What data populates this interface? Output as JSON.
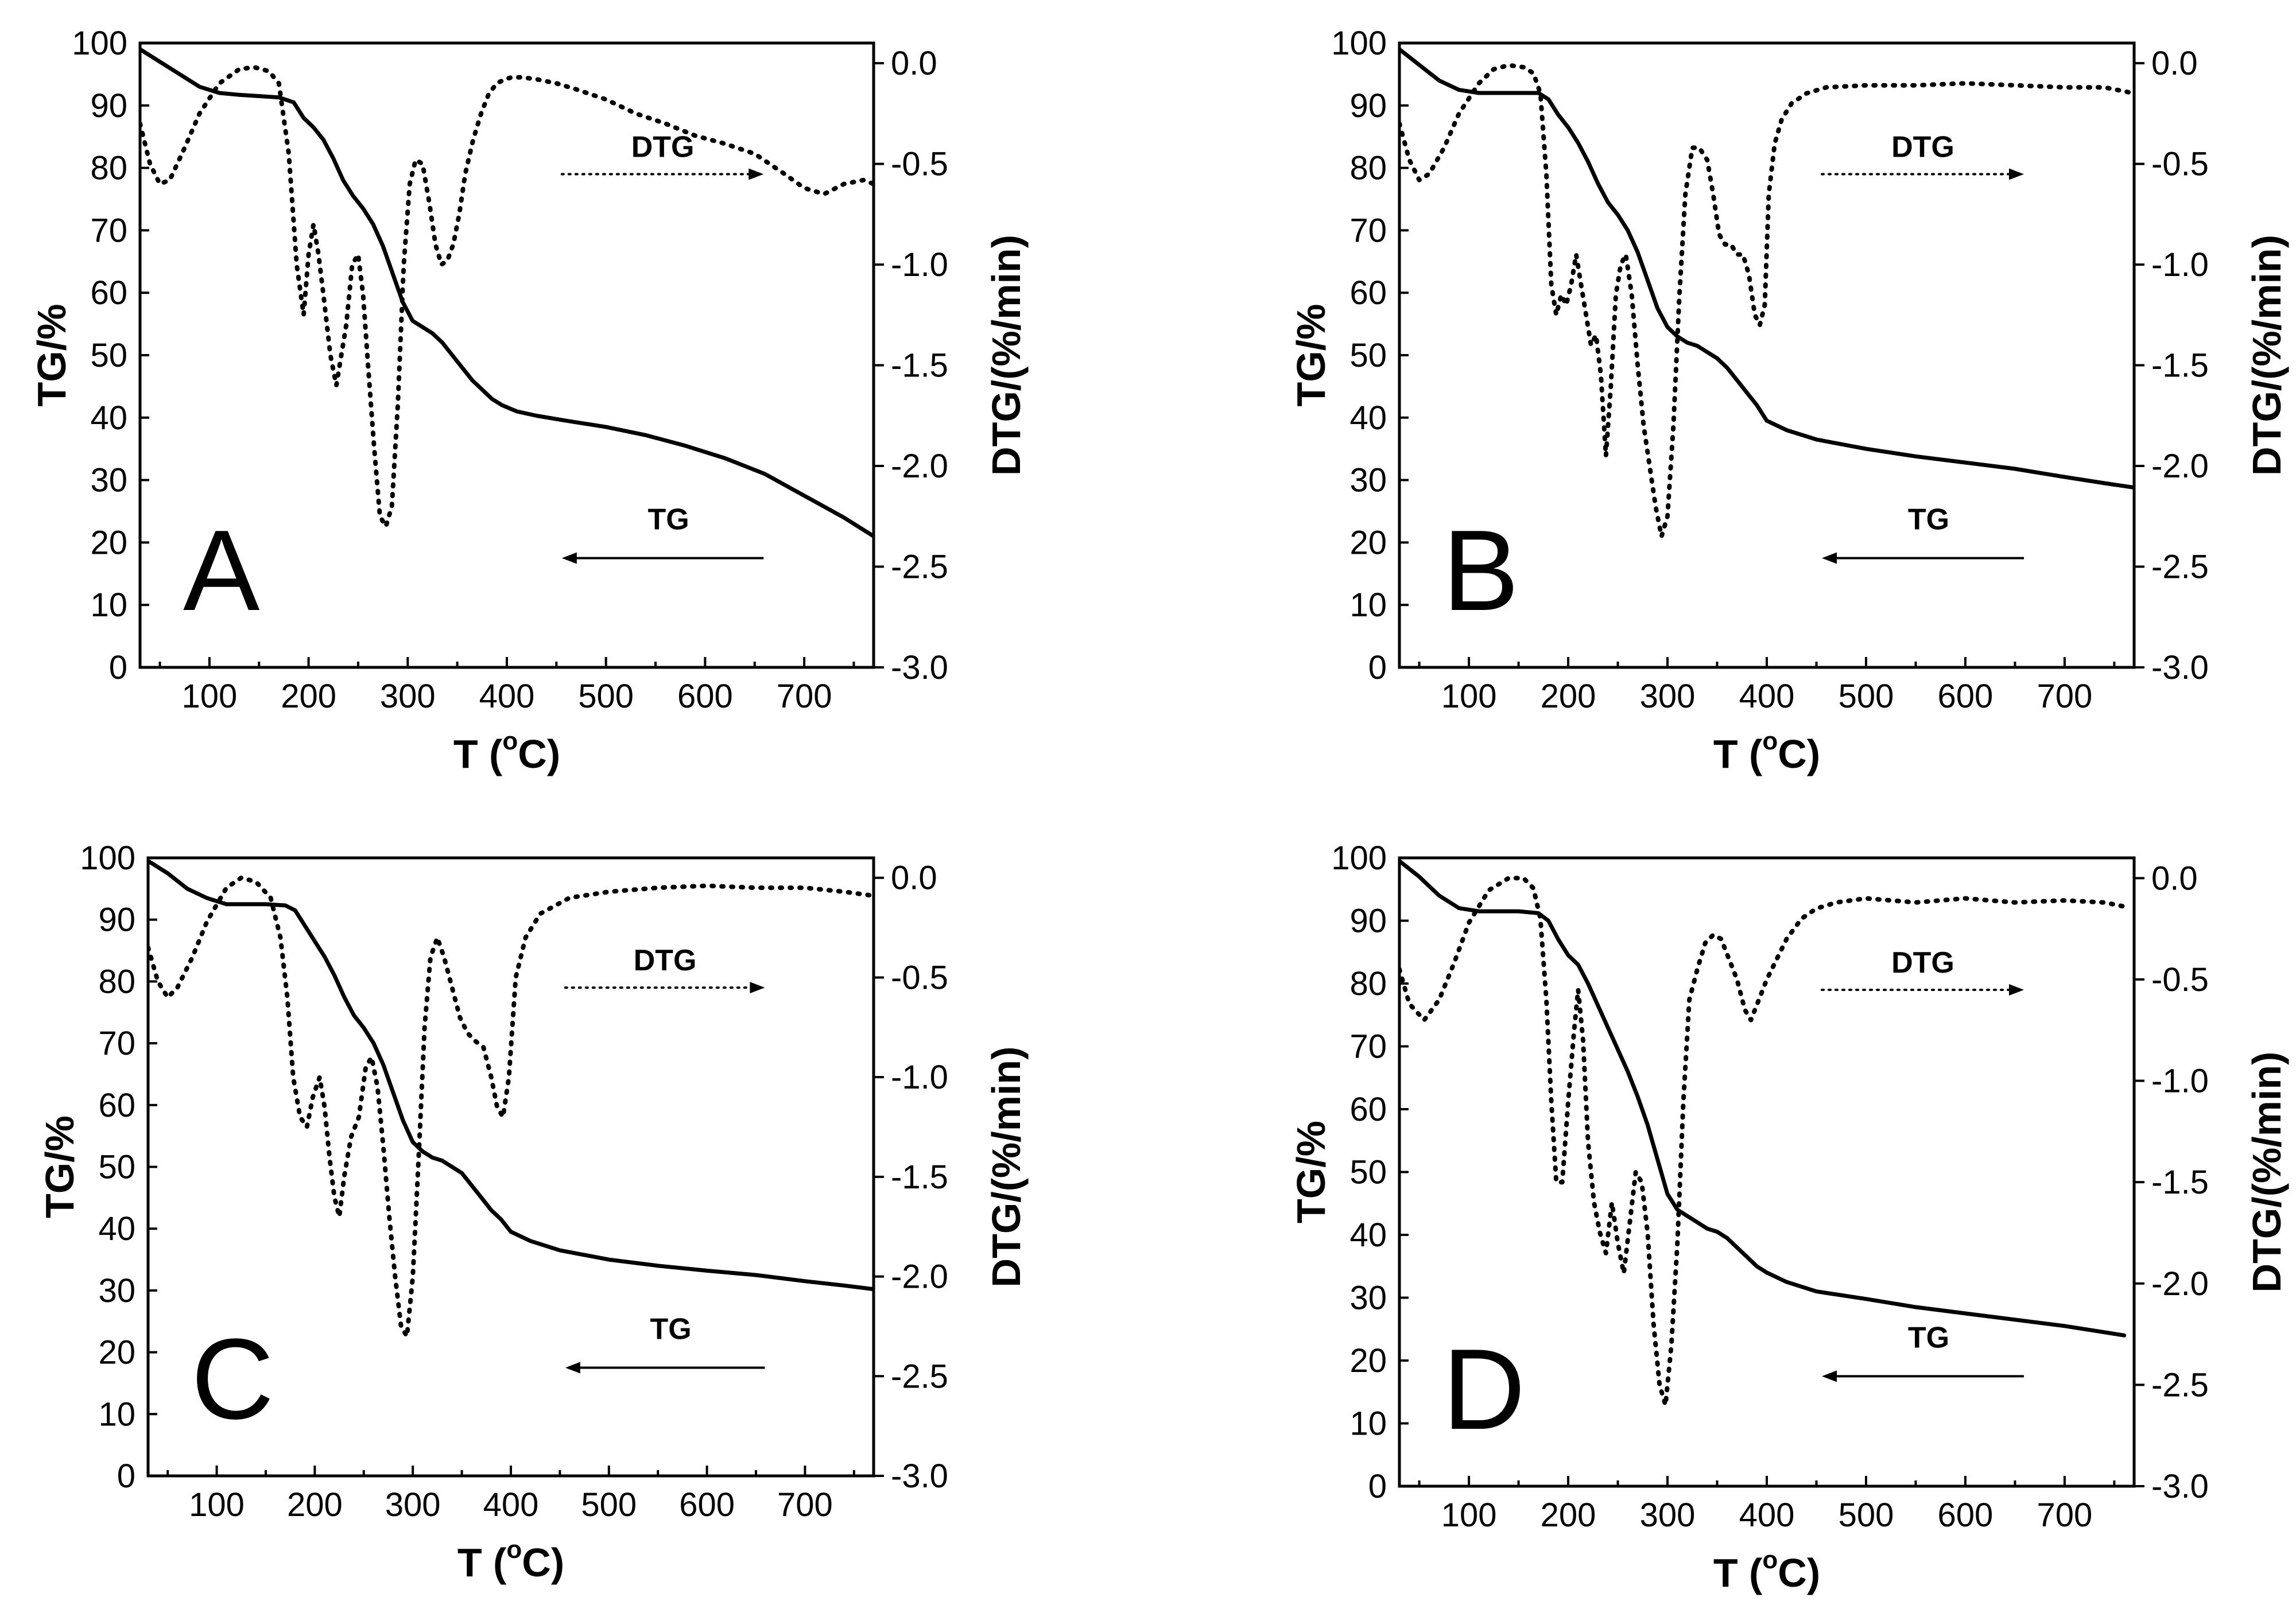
{
  "figure": {
    "xlabel_prefix": "T (",
    "xlabel_sup": "o",
    "xlabel_suffix": "C)",
    "ylabel_left": "TG/%",
    "ylabel_right": "DTG/(%/min)"
  },
  "chart_data": [
    {
      "type": "line",
      "panel": "A",
      "xlim": [
        30,
        770
      ],
      "ylim": [
        0,
        100
      ],
      "y2lim": [
        -3.0,
        0.1
      ],
      "xticks": [
        100,
        200,
        300,
        400,
        500,
        600,
        700
      ],
      "yticks": [
        0,
        10,
        20,
        30,
        40,
        50,
        60,
        70,
        80,
        90,
        100
      ],
      "y2ticks": [
        0.0,
        -0.5,
        -1.0,
        -1.5,
        -2.0,
        -2.5,
        -3.0
      ],
      "xlabel": "T (oC)",
      "ylabel": "TG/%",
      "y2label": "DTG/(%/min)",
      "annotations": {
        "dtg": "DTG",
        "tg": "TG"
      },
      "series": [
        {
          "name": "TG",
          "axis": "left",
          "style": "solid",
          "x": [
            30,
            50,
            70,
            90,
            110,
            130,
            150,
            170,
            185,
            195,
            205,
            215,
            225,
            235,
            245,
            255,
            265,
            275,
            285,
            295,
            305,
            315,
            325,
            335,
            345,
            355,
            365,
            375,
            385,
            395,
            410,
            430,
            460,
            500,
            540,
            580,
            620,
            660,
            700,
            740,
            770
          ],
          "y": [
            99,
            97,
            95,
            93,
            92,
            91.7,
            91.5,
            91.3,
            90.5,
            88,
            86.5,
            84.5,
            81.5,
            78,
            75.5,
            73.5,
            71,
            67.5,
            63,
            58.5,
            55.5,
            54.5,
            53.5,
            52,
            50,
            48,
            46,
            44.5,
            43,
            42,
            41,
            40.3,
            39.5,
            38.5,
            37.2,
            35.5,
            33.5,
            31,
            27.5,
            24,
            21
          ]
        },
        {
          "name": "DTG",
          "axis": "right",
          "style": "dotted",
          "x": [
            30,
            40,
            50,
            60,
            75,
            90,
            110,
            130,
            145,
            160,
            170,
            180,
            188,
            195,
            200,
            205,
            210,
            215,
            222,
            228,
            233,
            238,
            244,
            250,
            255,
            260,
            266,
            272,
            278,
            284,
            290,
            296,
            302,
            308,
            315,
            322,
            328,
            334,
            340,
            346,
            352,
            358,
            366,
            374,
            382,
            390,
            398,
            405,
            415,
            430,
            450,
            470,
            500,
            530,
            560,
            590,
            620,
            650,
            680,
            700,
            720,
            740,
            760,
            770
          ],
          "y": [
            -0.3,
            -0.5,
            -0.6,
            -0.58,
            -0.42,
            -0.25,
            -0.1,
            -0.03,
            -0.02,
            -0.04,
            -0.1,
            -0.45,
            -1.0,
            -1.25,
            -0.95,
            -0.8,
            -0.95,
            -1.15,
            -1.45,
            -1.6,
            -1.45,
            -1.3,
            -1.0,
            -0.95,
            -1.15,
            -1.5,
            -1.9,
            -2.25,
            -2.3,
            -2.2,
            -1.7,
            -1.0,
            -0.6,
            -0.48,
            -0.5,
            -0.7,
            -0.9,
            -1.0,
            -0.98,
            -0.9,
            -0.75,
            -0.55,
            -0.38,
            -0.25,
            -0.15,
            -0.1,
            -0.08,
            -0.07,
            -0.07,
            -0.08,
            -0.1,
            -0.13,
            -0.18,
            -0.25,
            -0.3,
            -0.36,
            -0.4,
            -0.45,
            -0.55,
            -0.62,
            -0.65,
            -0.6,
            -0.58,
            -0.6
          ]
        }
      ]
    },
    {
      "type": "line",
      "panel": "B",
      "xlim": [
        30,
        770
      ],
      "ylim": [
        0,
        100
      ],
      "y2lim": [
        -3.0,
        0.1
      ],
      "xticks": [
        100,
        200,
        300,
        400,
        500,
        600,
        700
      ],
      "yticks": [
        0,
        10,
        20,
        30,
        40,
        50,
        60,
        70,
        80,
        90,
        100
      ],
      "y2ticks": [
        0.0,
        -0.5,
        -1.0,
        -1.5,
        -2.0,
        -2.5,
        -3.0
      ],
      "xlabel": "T (oC)",
      "ylabel": "TG/%",
      "y2label": "DTG/(%/min)",
      "annotations": {
        "dtg": "DTG",
        "tg": "TG"
      },
      "series": [
        {
          "name": "TG",
          "axis": "left",
          "style": "solid",
          "x": [
            30,
            50,
            70,
            90,
            110,
            130,
            150,
            170,
            180,
            190,
            200,
            210,
            220,
            230,
            240,
            250,
            260,
            270,
            280,
            290,
            300,
            310,
            320,
            330,
            340,
            350,
            360,
            370,
            380,
            390,
            400,
            420,
            450,
            500,
            550,
            600,
            650,
            700,
            740,
            770
          ],
          "y": [
            99,
            96.5,
            94,
            92.5,
            92,
            92,
            92,
            92,
            91,
            88.5,
            86.5,
            84,
            81,
            77.5,
            74.5,
            72.5,
            70,
            66.5,
            62,
            57.5,
            54.5,
            53,
            52,
            51.5,
            50.5,
            49.5,
            48,
            46,
            44,
            42,
            39.5,
            38,
            36.5,
            35,
            33.8,
            32.8,
            31.8,
            30.5,
            29.5,
            28.8
          ]
        },
        {
          "name": "DTG",
          "axis": "right",
          "style": "dotted",
          "x": [
            30,
            40,
            50,
            60,
            75,
            90,
            110,
            125,
            140,
            155,
            165,
            172,
            178,
            183,
            188,
            193,
            198,
            203,
            208,
            213,
            218,
            223,
            228,
            233,
            238,
            243,
            248,
            253,
            258,
            264,
            270,
            276,
            282,
            288,
            294,
            300,
            306,
            312,
            318,
            325,
            332,
            340,
            346,
            352,
            358,
            364,
            370,
            376,
            382,
            388,
            393,
            398,
            402,
            408,
            415,
            425,
            440,
            460,
            500,
            550,
            600,
            650,
            700,
            740,
            770
          ],
          "y": [
            -0.3,
            -0.48,
            -0.58,
            -0.55,
            -0.42,
            -0.25,
            -0.1,
            -0.03,
            -0.01,
            -0.02,
            -0.05,
            -0.15,
            -0.55,
            -1.1,
            -1.25,
            -1.15,
            -1.2,
            -1.1,
            -0.95,
            -1.1,
            -1.25,
            -1.4,
            -1.35,
            -1.55,
            -1.95,
            -1.6,
            -1.15,
            -1.0,
            -0.95,
            -1.15,
            -1.5,
            -1.8,
            -2.0,
            -2.2,
            -2.35,
            -2.25,
            -1.8,
            -1.15,
            -0.65,
            -0.42,
            -0.42,
            -0.48,
            -0.65,
            -0.85,
            -0.9,
            -0.9,
            -0.95,
            -0.95,
            -1.05,
            -1.25,
            -1.3,
            -1.2,
            -0.65,
            -0.4,
            -0.28,
            -0.2,
            -0.15,
            -0.12,
            -0.11,
            -0.11,
            -0.1,
            -0.11,
            -0.12,
            -0.12,
            -0.15
          ]
        }
      ]
    },
    {
      "type": "line",
      "panel": "C",
      "xlim": [
        30,
        770
      ],
      "ylim": [
        0,
        100
      ],
      "y2lim": [
        -3.0,
        0.1
      ],
      "xticks": [
        100,
        200,
        300,
        400,
        500,
        600,
        700
      ],
      "yticks": [
        0,
        10,
        20,
        30,
        40,
        50,
        60,
        70,
        80,
        90,
        100
      ],
      "y2ticks": [
        0.0,
        -0.5,
        -1.0,
        -1.5,
        -2.0,
        -2.5,
        -3.0
      ],
      "xlabel": "T (oC)",
      "ylabel": "TG/%",
      "y2label": "DTG/(%/min)",
      "annotations": {
        "dtg": "DTG",
        "tg": "TG"
      },
      "series": [
        {
          "name": "TG",
          "axis": "left",
          "style": "solid",
          "x": [
            30,
            50,
            70,
            90,
            110,
            130,
            150,
            170,
            180,
            190,
            200,
            210,
            220,
            230,
            240,
            250,
            260,
            270,
            280,
            290,
            300,
            310,
            320,
            330,
            340,
            350,
            360,
            370,
            380,
            390,
            400,
            420,
            450,
            500,
            550,
            600,
            650,
            700,
            740,
            770
          ],
          "y": [
            99.5,
            97.5,
            95,
            93.5,
            92.5,
            92.5,
            92.5,
            92.3,
            91.5,
            89,
            86.5,
            84,
            81,
            77.5,
            74.5,
            72.5,
            70,
            66.5,
            62,
            57.5,
            54,
            52.5,
            51.5,
            51,
            50,
            49,
            47,
            45,
            43,
            41.5,
            39.5,
            38,
            36.5,
            35,
            34,
            33.2,
            32.5,
            31.5,
            30.8,
            30.2
          ]
        },
        {
          "name": "DTG",
          "axis": "right",
          "style": "dotted",
          "x": [
            30,
            40,
            50,
            60,
            75,
            90,
            110,
            125,
            140,
            155,
            165,
            172,
            178,
            185,
            192,
            198,
            205,
            210,
            215,
            220,
            225,
            230,
            237,
            245,
            252,
            258,
            264,
            270,
            276,
            282,
            288,
            294,
            300,
            306,
            312,
            318,
            325,
            332,
            340,
            348,
            356,
            364,
            372,
            380,
            386,
            392,
            398,
            405,
            415,
            430,
            460,
            500,
            550,
            600,
            650,
            700,
            740,
            770
          ],
          "y": [
            -0.35,
            -0.52,
            -0.6,
            -0.55,
            -0.4,
            -0.22,
            -0.05,
            0.0,
            -0.02,
            -0.1,
            -0.3,
            -0.6,
            -1.0,
            -1.2,
            -1.25,
            -1.1,
            -1.0,
            -1.15,
            -1.4,
            -1.6,
            -1.7,
            -1.5,
            -1.3,
            -1.2,
            -0.95,
            -0.9,
            -1.05,
            -1.35,
            -1.7,
            -2.0,
            -2.25,
            -2.3,
            -2.0,
            -1.4,
            -0.75,
            -0.4,
            -0.3,
            -0.4,
            -0.55,
            -0.7,
            -0.78,
            -0.82,
            -0.85,
            -1.0,
            -1.15,
            -1.2,
            -1.0,
            -0.5,
            -0.3,
            -0.18,
            -0.1,
            -0.07,
            -0.05,
            -0.04,
            -0.05,
            -0.05,
            -0.07,
            -0.09
          ]
        }
      ]
    },
    {
      "type": "line",
      "panel": "D",
      "xlim": [
        30,
        770
      ],
      "ylim": [
        0,
        100
      ],
      "y2lim": [
        -3.0,
        0.1
      ],
      "xticks": [
        100,
        200,
        300,
        400,
        500,
        600,
        700
      ],
      "yticks": [
        0,
        10,
        20,
        30,
        40,
        50,
        60,
        70,
        80,
        90,
        100
      ],
      "y2ticks": [
        0.0,
        -0.5,
        -1.0,
        -1.5,
        -2.0,
        -2.5,
        -3.0
      ],
      "xlabel": "T (oC)",
      "ylabel": "TG/%",
      "y2label": "DTG/(%/min)",
      "annotations": {
        "dtg": "DTG",
        "tg": "TG"
      },
      "series": [
        {
          "name": "TG",
          "axis": "left",
          "style": "solid",
          "x": [
            30,
            50,
            70,
            90,
            110,
            130,
            150,
            170,
            180,
            190,
            200,
            210,
            220,
            230,
            240,
            250,
            260,
            270,
            280,
            290,
            300,
            310,
            320,
            330,
            340,
            350,
            360,
            370,
            380,
            390,
            400,
            420,
            450,
            500,
            550,
            600,
            650,
            700,
            740,
            760
          ],
          "y": [
            99.5,
            97,
            94,
            92,
            91.5,
            91.5,
            91.5,
            91.2,
            90,
            87,
            84.5,
            83,
            80,
            76.5,
            73,
            69.5,
            66,
            62,
            57.5,
            52,
            46.5,
            44,
            43,
            42,
            41,
            40.5,
            39.5,
            38,
            36.5,
            35,
            34,
            32.5,
            31,
            29.8,
            28.5,
            27.5,
            26.5,
            25.5,
            24.5,
            24
          ]
        },
        {
          "name": "DTG",
          "axis": "right",
          "style": "dotted",
          "x": [
            30,
            40,
            55,
            70,
            85,
            100,
            120,
            140,
            155,
            165,
            172,
            178,
            183,
            188,
            194,
            200,
            206,
            210,
            215,
            220,
            226,
            232,
            238,
            244,
            250,
            256,
            262,
            268,
            274,
            280,
            286,
            292,
            298,
            304,
            310,
            316,
            322,
            330,
            338,
            346,
            354,
            362,
            370,
            378,
            384,
            392,
            400,
            410,
            420,
            435,
            450,
            470,
            500,
            550,
            600,
            650,
            700,
            740,
            760
          ],
          "y": [
            -0.45,
            -0.62,
            -0.7,
            -0.6,
            -0.42,
            -0.22,
            -0.06,
            0.0,
            0.0,
            -0.05,
            -0.2,
            -0.6,
            -1.1,
            -1.5,
            -1.5,
            -1.1,
            -0.75,
            -0.55,
            -0.8,
            -1.3,
            -1.6,
            -1.75,
            -1.85,
            -1.6,
            -1.8,
            -1.95,
            -1.7,
            -1.45,
            -1.5,
            -1.75,
            -2.2,
            -2.5,
            -2.6,
            -2.3,
            -1.8,
            -1.1,
            -0.6,
            -0.45,
            -0.32,
            -0.28,
            -0.3,
            -0.4,
            -0.5,
            -0.65,
            -0.7,
            -0.6,
            -0.5,
            -0.4,
            -0.3,
            -0.2,
            -0.15,
            -0.12,
            -0.1,
            -0.12,
            -0.1,
            -0.12,
            -0.11,
            -0.12,
            -0.14
          ]
        }
      ]
    }
  ]
}
